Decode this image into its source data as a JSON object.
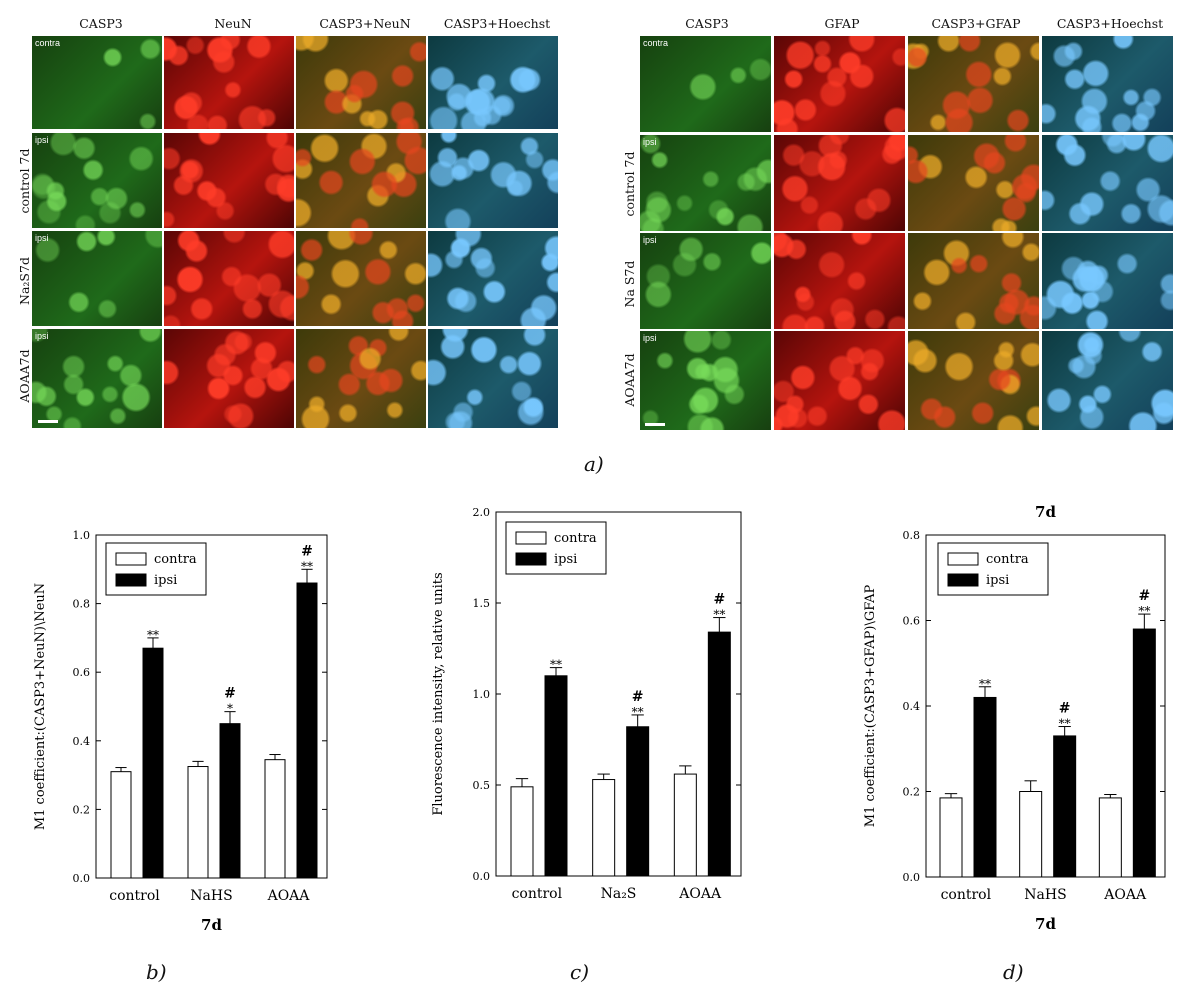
{
  "figure_a": {
    "left": {
      "column_headers": [
        "CASP3",
        "NeuN",
        "CASP3+NeuN",
        "CASP3+Hoechst"
      ],
      "row_labels": [
        "control 7d",
        "Na₂S7d",
        "AOAA7d"
      ],
      "cell_tags": [
        "contra",
        "ipsi",
        "ipsi",
        "ipsi"
      ]
    },
    "right": {
      "column_headers": [
        "CASP3",
        "GFAP",
        "CASP3+GFAP",
        "CASP3+Hoechst"
      ],
      "row_labels": [
        "control 7d",
        "Na S7d",
        "AOAA7d"
      ],
      "cell_tags": [
        "contra",
        "ipsi",
        "ipsi",
        "ipsi"
      ]
    },
    "colors": {
      "casp3": "#1f7a1f",
      "neun": "#b5140e",
      "gfap": "#a81008",
      "hoechst": "#1e5fb3"
    },
    "panel_label": "a)"
  },
  "panel_labels": {
    "b": "b)",
    "c": "c)",
    "d": "d)"
  },
  "chart_data": [
    {
      "type": "bar",
      "panel": "b",
      "categories": [
        "control",
        "NaHS",
        "AOAA"
      ],
      "series": [
        {
          "name": "contra",
          "values": [
            0.31,
            0.325,
            0.345
          ],
          "errors": [
            0.012,
            0.015,
            0.015
          ],
          "color": "#ffffff"
        },
        {
          "name": "ipsi",
          "values": [
            0.67,
            0.45,
            0.86
          ],
          "errors": [
            0.03,
            0.035,
            0.04
          ],
          "color": "#000000"
        }
      ],
      "annotations": {
        "ipsi": [
          "**",
          "#\n*",
          "#\n**"
        ]
      },
      "xlabel": "7d",
      "ylabel": "M1 coefficient:(CASP3+NeuN)\\NeuN",
      "ylim": [
        0,
        1.0
      ],
      "yticks": [
        "0.0",
        "0.2",
        "0.4",
        "0.6",
        "0.8",
        "1.0"
      ],
      "legend": "top-left"
    },
    {
      "type": "bar",
      "panel": "c",
      "categories": [
        "control",
        "Na₂S",
        "AOAA"
      ],
      "series": [
        {
          "name": "contra",
          "values": [
            0.49,
            0.53,
            0.56
          ],
          "errors": [
            0.045,
            0.03,
            0.045
          ],
          "color": "#ffffff"
        },
        {
          "name": "ipsi",
          "values": [
            1.1,
            0.82,
            1.34
          ],
          "errors": [
            0.045,
            0.065,
            0.08
          ],
          "color": "#000000"
        }
      ],
      "annotations": {
        "ipsi": [
          "**",
          "#\n**",
          "#\n**"
        ]
      },
      "xlabel": "",
      "ylabel": "Fluorescence intensity, relative units",
      "ylim": [
        0,
        2.0
      ],
      "yticks": [
        "0.0",
        "0.5",
        "1.0",
        "1.5",
        "2.0"
      ],
      "legend": "top-left"
    },
    {
      "type": "bar",
      "panel": "d",
      "title": "7d",
      "categories": [
        "control",
        "NaHS",
        "AOAA"
      ],
      "series": [
        {
          "name": "contra",
          "values": [
            0.185,
            0.2,
            0.185
          ],
          "errors": [
            0.01,
            0.025,
            0.008
          ],
          "color": "#ffffff"
        },
        {
          "name": "ipsi",
          "values": [
            0.42,
            0.33,
            0.58
          ],
          "errors": [
            0.025,
            0.022,
            0.035
          ],
          "color": "#000000"
        }
      ],
      "annotations": {
        "ipsi": [
          "**",
          "#\n**",
          "#\n**"
        ]
      },
      "xlabel": "7d",
      "ylabel": "M1 coefficient:(CASP3+GFAP)\\GFAP",
      "ylim": [
        0,
        0.8
      ],
      "yticks": [
        "0.0",
        "0.2",
        "0.4",
        "0.6",
        "0.8"
      ],
      "legend": "top-left"
    }
  ]
}
